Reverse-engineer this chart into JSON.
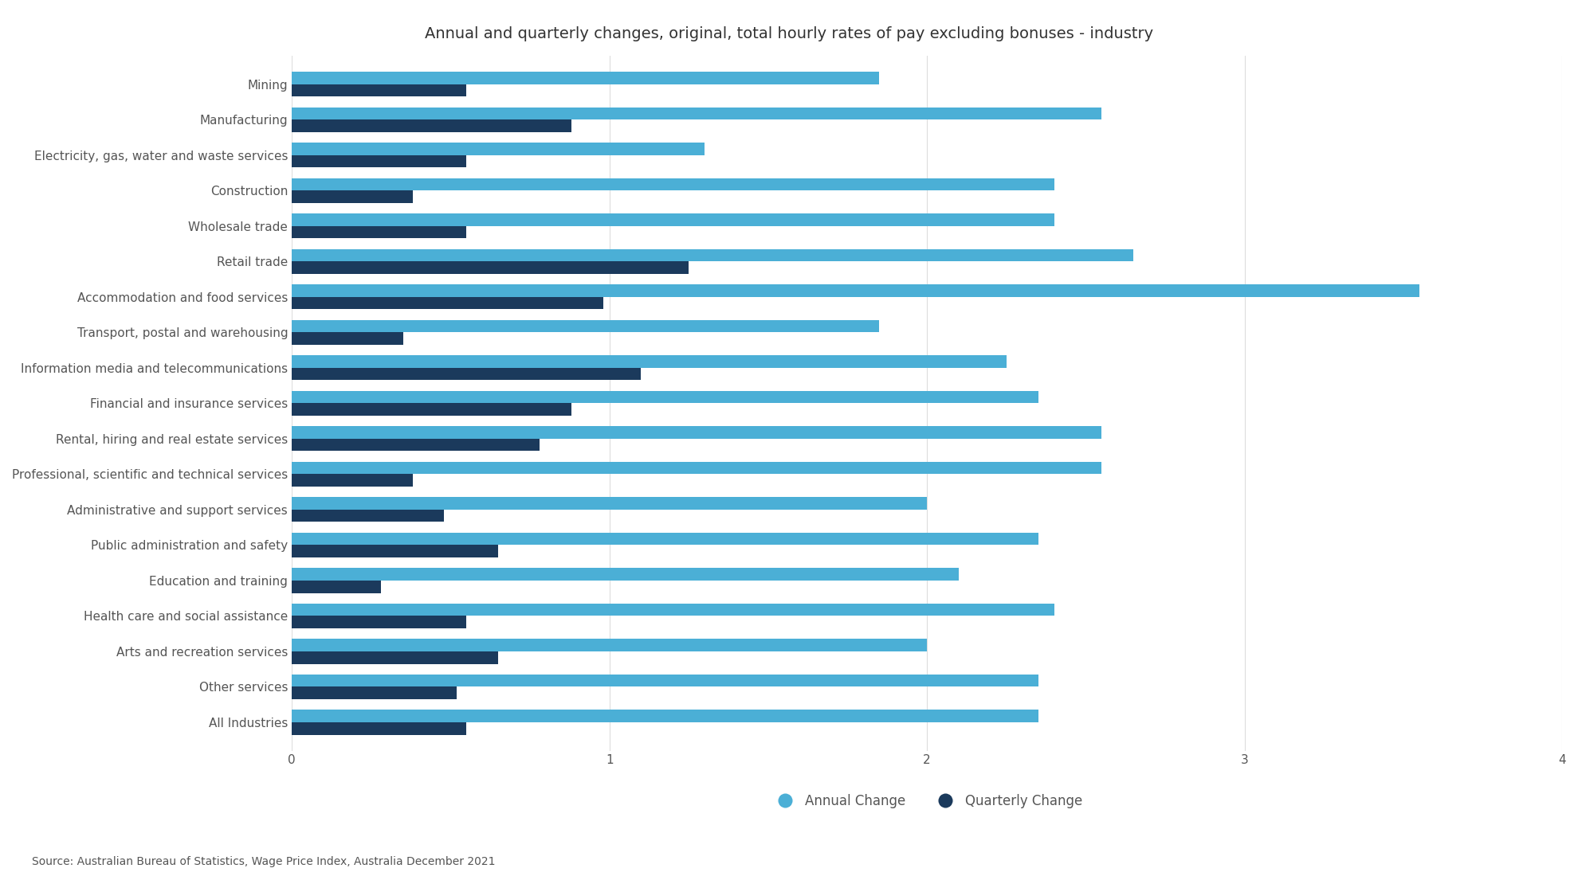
{
  "title": "Annual and quarterly changes, original, total hourly rates of pay excluding bonuses - industry",
  "source": "Source: Australian Bureau of Statistics, Wage Price Index, Australia December 2021",
  "categories": [
    "Mining",
    "Manufacturing",
    "Electricity, gas, water and waste services",
    "Construction",
    "Wholesale trade",
    "Retail trade",
    "Accommodation and food services",
    "Transport, postal and warehousing",
    "Information media and telecommunications",
    "Financial and insurance services",
    "Rental, hiring and real estate services",
    "Professional, scientific and technical services",
    "Administrative and support services",
    "Public administration and safety",
    "Education and training",
    "Health care and social assistance",
    "Arts and recreation services",
    "Other services",
    "All Industries"
  ],
  "annual_change": [
    1.85,
    2.55,
    1.3,
    2.4,
    2.4,
    2.65,
    3.55,
    1.85,
    2.25,
    2.35,
    2.55,
    2.55,
    2.0,
    2.35,
    2.1,
    2.4,
    2.0,
    2.35,
    2.35
  ],
  "quarterly_change": [
    0.55,
    0.88,
    0.55,
    0.38,
    0.55,
    1.25,
    0.98,
    0.35,
    1.1,
    0.88,
    0.78,
    0.38,
    0.48,
    0.65,
    0.28,
    0.55,
    0.65,
    0.52,
    0.55
  ],
  "annual_color": "#4BAFD6",
  "quarterly_color": "#1B3A5C",
  "background_color": "#FFFFFF",
  "xlim": [
    0,
    4
  ],
  "bar_height": 0.35,
  "title_fontsize": 14,
  "tick_fontsize": 11,
  "legend_fontsize": 12,
  "source_fontsize": 10,
  "grid_color": "#DDDDDD"
}
